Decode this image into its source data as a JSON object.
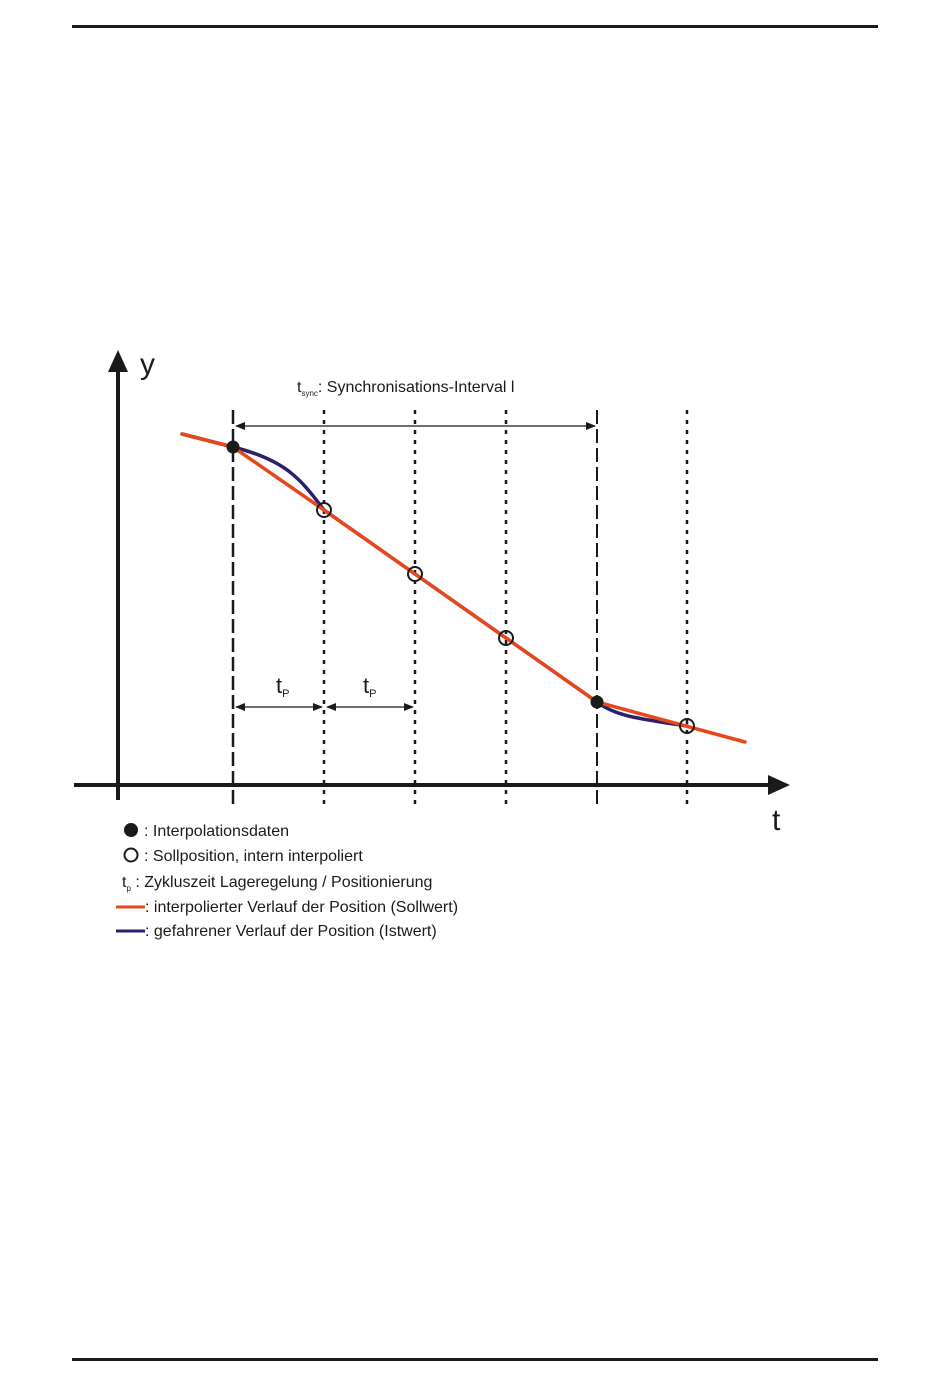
{
  "axes": {
    "y_label": "y",
    "x_label": "t"
  },
  "interval": {
    "t_main": "t",
    "t_sub": "sync",
    "text": ": Synchronisations-Interval l"
  },
  "tp_labels": [
    {
      "main": "t",
      "sub": "P"
    },
    {
      "main": "t",
      "sub": "P"
    }
  ],
  "legend": [
    {
      "symbol": "filled-dot",
      "text": ": Interpolationsdaten"
    },
    {
      "symbol": "open-circle",
      "text": ": Sollposition, intern interpoliert"
    },
    {
      "symbol": "tp",
      "text_main": "t",
      "text_sub": "p",
      "text": " : Zykluszeit Lageregelung / Positionierung"
    },
    {
      "symbol": "orange-line",
      "text": ": interpolierter Verlauf der Position (Sollwert)"
    },
    {
      "symbol": "navy-line",
      "text": ": gefahrener Verlauf der Position (Istwert)"
    }
  ],
  "colors": {
    "setpoint_line": "#e8471c",
    "actual_line": "#2b1f6e",
    "ink": "#1a1a1a"
  }
}
